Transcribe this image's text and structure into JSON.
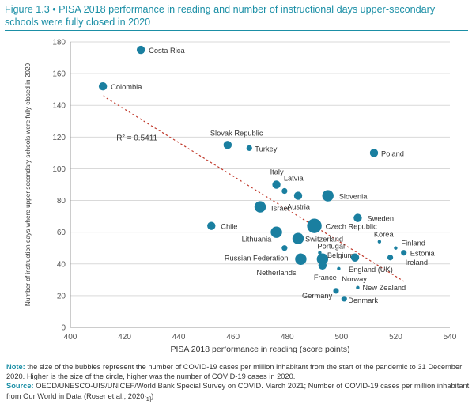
{
  "figure": {
    "label": "Figure 1.3",
    "bullet": "•",
    "title": "PISA 2018 performance in reading and number of instructional days upper-secondary schools were fully closed in 2020"
  },
  "notes": {
    "note_label": "Note:",
    "note_text": "the size of the bubbles represent the number of COVID-19 cases per million inhabitant from the start of the pandemic to 31 December 2020. Higher is the size of the circle, higher was the number of COVID-19 cases in 2020.",
    "source_label": "Source:",
    "source_text": "OECD/UNESCO-UIS/UNICEF/World Bank Special Survey on COVID. March 2021; Number of COVID-19 cases per million inhabitant from Our World in Data (Roser et al., 2020",
    "source_end": ")",
    "ref": "[1]"
  },
  "colors": {
    "bubble": "#1a7fa0",
    "trend": "#c0392b",
    "accent": "#1b8fa6"
  },
  "chart_data": {
    "type": "scatter",
    "xlabel": "PISA 2018 performance in reading (score points)",
    "ylabel": "Number of instruction days where upper secondary schools were fully closed in 2020",
    "xlim": [
      400,
      540
    ],
    "ylim": [
      0,
      180
    ],
    "xticks": [
      "400",
      "420",
      "440",
      "460",
      "480",
      "500",
      "520",
      "540"
    ],
    "yticks": [
      "0",
      "20",
      "40",
      "60",
      "80",
      "100",
      "120",
      "140",
      "160",
      "180"
    ],
    "r2_label": "R² = 0.5411",
    "trendline": {
      "x": [
        412,
        523
      ],
      "y": [
        146,
        29
      ]
    },
    "grid": "horizontal",
    "points": [
      {
        "name": "Costa Rica",
        "x": 426,
        "y": 175,
        "size": "medium"
      },
      {
        "name": "Colombia",
        "x": 412,
        "y": 152,
        "size": "medium"
      },
      {
        "name": "Slovak Republic",
        "x": 458,
        "y": 115,
        "size": "medium"
      },
      {
        "name": "Turkey",
        "x": 466,
        "y": 113,
        "size": "small"
      },
      {
        "name": "Poland",
        "x": 512,
        "y": 110,
        "size": "medium"
      },
      {
        "name": "Italy",
        "x": 476,
        "y": 90,
        "size": "medium"
      },
      {
        "name": "Latvia",
        "x": 479,
        "y": 86,
        "size": "small"
      },
      {
        "name": "Austria",
        "x": 484,
        "y": 83,
        "size": "medium"
      },
      {
        "name": "Slovenia",
        "x": 495,
        "y": 83,
        "size": "large"
      },
      {
        "name": "Israel",
        "x": 470,
        "y": 76,
        "size": "large"
      },
      {
        "name": "Sweden",
        "x": 506,
        "y": 69,
        "size": "medium"
      },
      {
        "name": "Chile",
        "x": 452,
        "y": 64,
        "size": "medium"
      },
      {
        "name": "Czech Republic",
        "x": 490,
        "y": 64,
        "size": "xlarge"
      },
      {
        "name": "Lithuania",
        "x": 476,
        "y": 60,
        "size": "large"
      },
      {
        "name": "Switzerland",
        "x": 484,
        "y": 56,
        "size": "large"
      },
      {
        "name": "Korea",
        "x": 514,
        "y": 54,
        "size": "tiny"
      },
      {
        "name": "Finland",
        "x": 520,
        "y": 50,
        "size": "tiny"
      },
      {
        "name": "Estonia",
        "x": 523,
        "y": 47,
        "size": "small"
      },
      {
        "name": "Russian Federation",
        "x": 479,
        "y": 50,
        "size": "small"
      },
      {
        "name": "Portugal",
        "x": 492,
        "y": 47,
        "size": "tiny"
      },
      {
        "name": "Ireland",
        "x": 518,
        "y": 44,
        "size": "small"
      },
      {
        "name": "Netherlands",
        "x": 485,
        "y": 43,
        "size": "large"
      },
      {
        "name": "Belgium",
        "x": 493,
        "y": 43,
        "size": "large"
      },
      {
        "name": "England (UK)",
        "x": 505,
        "y": 44,
        "size": "medium"
      },
      {
        "name": "France",
        "x": 493,
        "y": 39,
        "size": "medium"
      },
      {
        "name": "Norway",
        "x": 499,
        "y": 37,
        "size": "tiny"
      },
      {
        "name": "New Zealand",
        "x": 506,
        "y": 25,
        "size": "tiny"
      },
      {
        "name": "Germany",
        "x": 498,
        "y": 23,
        "size": "small"
      },
      {
        "name": "Denmark",
        "x": 501,
        "y": 18,
        "size": "small"
      }
    ]
  }
}
